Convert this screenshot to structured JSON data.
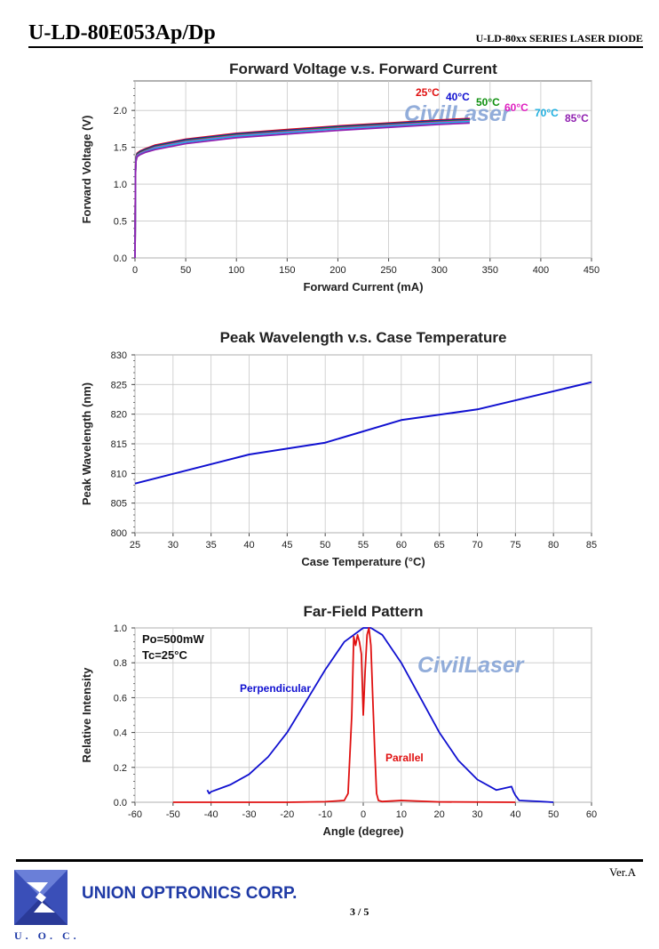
{
  "header": {
    "model": "U-LD-80E053Ap/Dp",
    "series": "U-LD-80xx SERIES LASER DIODE"
  },
  "footer": {
    "version": "Ver.A",
    "company": "UNION OPTRONICS CORP.",
    "page": "3 / 5",
    "logo_text": "U. O. C."
  },
  "watermark": "CivilLaser",
  "colors": {
    "red": "#e01010",
    "blue": "#1010d0",
    "green": "#109010",
    "magenta": "#e020c0",
    "cyan": "#20b0e0",
    "purple": "#9020b0",
    "logo_blue": "#1f3aa6",
    "watermark": "#7f9fd4"
  },
  "chart_data": [
    {
      "type": "line",
      "title": "Forward Voltage v.s. Forward Current",
      "xlabel": "Forward Current (mA)",
      "ylabel": "Forward Voltage (V)",
      "xlim": [
        0,
        450
      ],
      "ylim": [
        0,
        2.4
      ],
      "xticks": [
        "0",
        "50",
        "100",
        "150",
        "200",
        "250",
        "300",
        "350",
        "400",
        "450"
      ],
      "yticks": [
        "0.0",
        "0.5",
        "1.0",
        "1.5",
        "2.0"
      ],
      "grid": true,
      "series": [
        {
          "name": "25°C",
          "color": "#e01010",
          "x": [
            0,
            0.5,
            1,
            2,
            5,
            10,
            20,
            50,
            100,
            150,
            200,
            250,
            300,
            330
          ],
          "y": [
            0,
            1.2,
            1.36,
            1.42,
            1.45,
            1.48,
            1.53,
            1.61,
            1.69,
            1.74,
            1.79,
            1.83,
            1.87,
            1.89
          ]
        },
        {
          "name": "40°C",
          "color": "#1010d0",
          "x": [
            0,
            0.5,
            1,
            2,
            5,
            10,
            20,
            50,
            100,
            150,
            200,
            250,
            300,
            330
          ],
          "y": [
            0,
            1.19,
            1.35,
            1.41,
            1.44,
            1.47,
            1.52,
            1.6,
            1.68,
            1.73,
            1.78,
            1.82,
            1.86,
            1.88
          ]
        },
        {
          "name": "50°C",
          "color": "#109010",
          "x": [
            0,
            0.5,
            1,
            2,
            5,
            10,
            20,
            50,
            100,
            150,
            200,
            250,
            300,
            330
          ],
          "y": [
            0,
            1.18,
            1.34,
            1.4,
            1.43,
            1.46,
            1.51,
            1.59,
            1.67,
            1.72,
            1.77,
            1.81,
            1.85,
            1.87
          ]
        },
        {
          "name": "60°C",
          "color": "#e020c0",
          "x": [
            0,
            0.5,
            1,
            2,
            5,
            10,
            20,
            50,
            100,
            150,
            200,
            250,
            300,
            330
          ],
          "y": [
            0,
            1.17,
            1.33,
            1.39,
            1.42,
            1.45,
            1.5,
            1.58,
            1.66,
            1.71,
            1.76,
            1.8,
            1.84,
            1.86
          ]
        },
        {
          "name": "70°C",
          "color": "#20b0e0",
          "x": [
            0,
            0.5,
            1,
            2,
            5,
            10,
            20,
            50,
            100,
            150,
            200,
            250,
            300,
            330
          ],
          "y": [
            0,
            1.16,
            1.32,
            1.38,
            1.41,
            1.44,
            1.49,
            1.57,
            1.65,
            1.7,
            1.75,
            1.79,
            1.83,
            1.85
          ]
        },
        {
          "name": "85°C",
          "color": "#9020b0",
          "x": [
            0,
            0.5,
            1,
            2,
            5,
            10,
            20,
            50,
            100,
            150,
            200,
            250,
            300,
            330
          ],
          "y": [
            0,
            1.15,
            1.31,
            1.37,
            1.4,
            1.43,
            1.47,
            1.55,
            1.63,
            1.68,
            1.73,
            1.77,
            1.81,
            1.83
          ]
        }
      ]
    },
    {
      "type": "line",
      "title": "Peak Wavelength v.s. Case Temperature",
      "xlabel": "Case Temperature (°C)",
      "ylabel": "Peak Wavelength (nm)",
      "xlim": [
        25,
        85
      ],
      "ylim": [
        800,
        830
      ],
      "xticks": [
        "25",
        "30",
        "35",
        "40",
        "45",
        "50",
        "55",
        "60",
        "65",
        "70",
        "75",
        "80",
        "85"
      ],
      "yticks": [
        "800",
        "805",
        "810",
        "815",
        "820",
        "825",
        "830"
      ],
      "grid": true,
      "series": [
        {
          "color": "#1010d0",
          "x": [
            25,
            40,
            50,
            60,
            70,
            85
          ],
          "y": [
            808.3,
            813.2,
            815.2,
            819.0,
            820.8,
            825.4
          ]
        }
      ]
    },
    {
      "type": "line",
      "title": "Far-Field Pattern",
      "xlabel": "Angle (degree)",
      "ylabel": "Relative Intensity",
      "xlim": [
        -60,
        60
      ],
      "ylim": [
        0,
        1.0
      ],
      "xticks": [
        "-60",
        "-50",
        "-40",
        "-30",
        "-20",
        "-10",
        "0",
        "10",
        "20",
        "30",
        "40",
        "50",
        "60"
      ],
      "yticks": [
        "0.0",
        "0.2",
        "0.4",
        "0.6",
        "0.8",
        "1.0"
      ],
      "grid": true,
      "annotations": [
        "Po=500mW",
        "Tc=25°C"
      ],
      "series": [
        {
          "name": "Perpendicular",
          "color": "#1010d0",
          "x": [
            -41,
            -40.5,
            -40,
            -35,
            -30,
            -25,
            -20,
            -15,
            -10,
            -5,
            0,
            2,
            5,
            10,
            15,
            20,
            25,
            30,
            35,
            39,
            39.5,
            40,
            41,
            46,
            50
          ],
          "y": [
            0.07,
            0.05,
            0.06,
            0.1,
            0.16,
            0.26,
            0.4,
            0.58,
            0.76,
            0.92,
            1.0,
            1.0,
            0.96,
            0.8,
            0.6,
            0.4,
            0.24,
            0.13,
            0.07,
            0.09,
            0.06,
            0.04,
            0.01,
            0.005,
            0.0
          ]
        },
        {
          "name": "Parallel",
          "color": "#e01010",
          "x": [
            -50,
            -40,
            -20,
            -10,
            -5,
            -4,
            -3,
            -2.5,
            -2,
            -1.5,
            -1,
            -0.5,
            0,
            0.5,
            1,
            1.5,
            2,
            2.5,
            3,
            3.5,
            4,
            5,
            10,
            20,
            40
          ],
          "y": [
            0,
            0,
            0,
            0.003,
            0.01,
            0.05,
            0.5,
            0.95,
            0.9,
            0.96,
            0.92,
            0.85,
            0.5,
            0.75,
            0.96,
            1.0,
            0.9,
            0.6,
            0.3,
            0.05,
            0.01,
            0.004,
            0.01,
            0.002,
            0.0
          ]
        }
      ]
    }
  ]
}
